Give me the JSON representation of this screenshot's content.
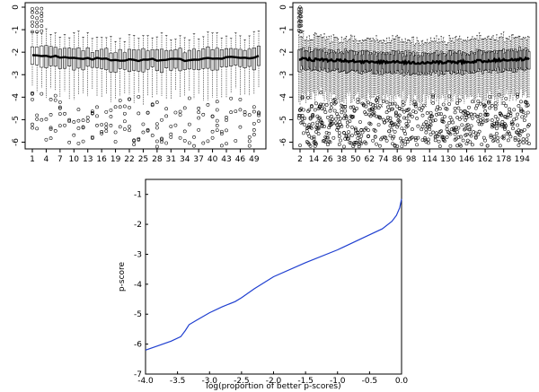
{
  "chart_data": [
    {
      "type": "box",
      "panel": "top-left",
      "n_boxes": 50,
      "x_tick_labels": [
        "1",
        "4",
        "7",
        "10",
        "13",
        "16",
        "19",
        "22",
        "25",
        "28",
        "31",
        "34",
        "37",
        "40",
        "43",
        "46",
        "49"
      ],
      "y_tick_labels": [
        "0",
        "-1",
        "-2",
        "-3",
        "-4",
        "-5",
        "-6"
      ],
      "ylim": [
        -6.3,
        0.2
      ],
      "median_trend": {
        "start": -2.1,
        "end": -2.2,
        "dip_min": -2.35
      },
      "min_outlier": -6.2,
      "max_outlier": 0.0
    },
    {
      "type": "box",
      "panel": "top-right",
      "n_boxes": 200,
      "x_tick_labels": [
        "2",
        "14",
        "26",
        "38",
        "50",
        "62",
        "74",
        "86",
        "98",
        "114",
        "130",
        "146",
        "162",
        "178",
        "194"
      ],
      "y_tick_labels": [
        "0",
        "-1",
        "-2",
        "-3",
        "-4",
        "-5",
        "-6"
      ],
      "ylim": [
        -6.3,
        0.2
      ],
      "median_trend": {
        "start": -2.3,
        "end": -2.3,
        "dip_min": -2.5
      },
      "min_outlier": -5.9,
      "max_outlier": 0.0
    },
    {
      "type": "line",
      "panel": "bottom",
      "xlabel": "log(proportion of better p-scores)",
      "ylabel": "p-score",
      "xlim": [
        -4.0,
        0.0
      ],
      "ylim": [
        -7,
        -0.5
      ],
      "x_tick_labels": [
        "-4.0",
        "-3.5",
        "-3.0",
        "-2.5",
        "-2.0",
        "-1.5",
        "-1.0",
        "-0.5",
        "0.0"
      ],
      "y_tick_labels": [
        "-1",
        "-2",
        "-3",
        "-4",
        "-5",
        "-6",
        "-7"
      ],
      "series": [
        {
          "name": "p-score",
          "color": "#1f3fd0",
          "x": [
            -4.0,
            -3.8,
            -3.6,
            -3.45,
            -3.38,
            -3.32,
            -3.2,
            -3.0,
            -2.8,
            -2.6,
            -2.5,
            -2.3,
            -2.0,
            -1.5,
            -1.0,
            -0.6,
            -0.3,
            -0.15,
            -0.08,
            -0.03,
            0.0
          ],
          "y": [
            -6.2,
            -6.05,
            -5.9,
            -5.75,
            -5.55,
            -5.35,
            -5.2,
            -4.95,
            -4.75,
            -4.58,
            -4.45,
            -4.15,
            -3.75,
            -3.28,
            -2.85,
            -2.45,
            -2.15,
            -1.9,
            -1.7,
            -1.45,
            -1.15
          ]
        }
      ]
    }
  ]
}
